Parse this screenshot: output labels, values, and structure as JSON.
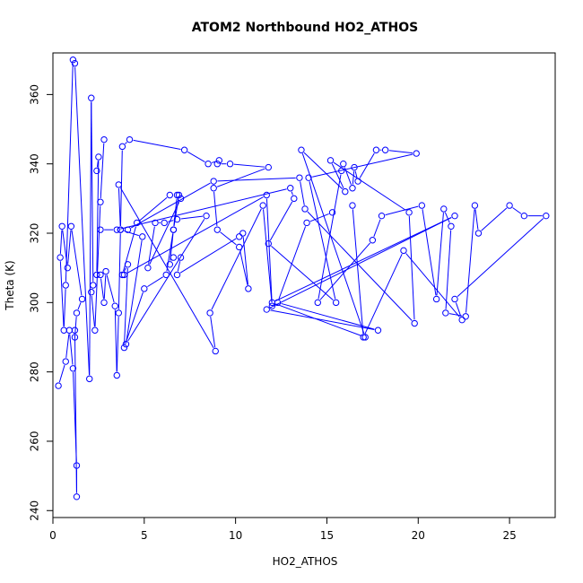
{
  "chart_data": {
    "type": "line",
    "title": "ATOM2 Northbound HO2_ATHOS",
    "xlabel": "HO2_ATHOS",
    "ylabel": "Theta (K)",
    "xlim": [
      0,
      27.5
    ],
    "ylim": [
      238,
      372
    ],
    "xticks": [
      0,
      5,
      10,
      15,
      20,
      25
    ],
    "yticks": [
      240,
      260,
      280,
      300,
      320,
      340,
      360
    ],
    "series_color": "#0000ff",
    "marker": "open-circle",
    "gap_after_indices": [
      24,
      63,
      79,
      113
    ],
    "points": [
      [
        0.3,
        276
      ],
      [
        0.7,
        283
      ],
      [
        0.9,
        292
      ],
      [
        1.1,
        281
      ],
      [
        1.3,
        253
      ],
      [
        1.3,
        244
      ],
      [
        1.2,
        292
      ],
      [
        1.2,
        290
      ],
      [
        1.3,
        297
      ],
      [
        1.6,
        301
      ],
      [
        1.0,
        322
      ],
      [
        0.8,
        310
      ],
      [
        0.5,
        322
      ],
      [
        0.4,
        313
      ],
      [
        0.6,
        292
      ],
      [
        0.7,
        305
      ],
      [
        1.1,
        370
      ],
      [
        1.2,
        369
      ],
      [
        2.0,
        278
      ],
      [
        2.1,
        359
      ],
      [
        2.2,
        305
      ],
      [
        2.1,
        303
      ],
      [
        2.3,
        292
      ],
      [
        2.6,
        329
      ],
      [
        2.8,
        347
      ],
      [
        2.4,
        338
      ],
      [
        2.5,
        342
      ],
      [
        2.4,
        308
      ],
      [
        2.6,
        308
      ],
      [
        2.8,
        300
      ],
      [
        2.9,
        309
      ],
      [
        3.4,
        299
      ],
      [
        3.5,
        279
      ],
      [
        3.6,
        297
      ],
      [
        3.7,
        321
      ],
      [
        3.8,
        345
      ],
      [
        4.2,
        347
      ],
      [
        7.2,
        344
      ],
      [
        8.5,
        340
      ],
      [
        9.1,
        341
      ],
      [
        9.0,
        340
      ],
      [
        9.7,
        340
      ],
      [
        11.8,
        339
      ],
      [
        8.8,
        333
      ],
      [
        9.0,
        321
      ],
      [
        10.2,
        316
      ],
      [
        10.7,
        304
      ],
      [
        10.4,
        320
      ],
      [
        10.2,
        319
      ],
      [
        6.8,
        308
      ],
      [
        7.0,
        313
      ],
      [
        6.6,
        313
      ],
      [
        6.4,
        311
      ],
      [
        6.6,
        321
      ],
      [
        6.8,
        331
      ],
      [
        6.4,
        331
      ],
      [
        4.6,
        323
      ],
      [
        3.8,
        308
      ],
      [
        4.1,
        311
      ],
      [
        3.9,
        287
      ],
      [
        5.0,
        304
      ],
      [
        6.2,
        308
      ],
      [
        6.6,
        321
      ],
      [
        6.9,
        331
      ],
      [
        7.0,
        330
      ],
      [
        5.2,
        310
      ],
      [
        5.6,
        323
      ],
      [
        6.1,
        323
      ],
      [
        6.8,
        324
      ],
      [
        8.4,
        325
      ],
      [
        4.0,
        288
      ],
      [
        4.9,
        319
      ],
      [
        3.7,
        321
      ],
      [
        3.6,
        334
      ],
      [
        8.9,
        286
      ],
      [
        8.6,
        297
      ],
      [
        11.5,
        328
      ],
      [
        12.0,
        299
      ],
      [
        11.7,
        331
      ],
      [
        3.9,
        308
      ],
      [
        2.6,
        321
      ],
      [
        3.5,
        321
      ],
      [
        13.0,
        333
      ],
      [
        13.2,
        330
      ],
      [
        11.8,
        317
      ],
      [
        15.5,
        300
      ],
      [
        14.0,
        336
      ],
      [
        19.9,
        343
      ],
      [
        18.2,
        344
      ],
      [
        17.7,
        344
      ],
      [
        16.7,
        335
      ],
      [
        16.5,
        339
      ],
      [
        16.4,
        333
      ],
      [
        15.9,
        340
      ],
      [
        15.8,
        338
      ],
      [
        14.5,
        300
      ],
      [
        17.5,
        318
      ],
      [
        18.0,
        325
      ],
      [
        20.2,
        328
      ],
      [
        21.0,
        301
      ],
      [
        21.4,
        327
      ],
      [
        21.8,
        322
      ],
      [
        21.5,
        297
      ],
      [
        22.6,
        296
      ],
      [
        23.1,
        328
      ],
      [
        23.3,
        320
      ],
      [
        25.0,
        328
      ],
      [
        25.8,
        325
      ],
      [
        27.0,
        325
      ],
      [
        22.0,
        301
      ],
      [
        22.4,
        295
      ],
      [
        19.2,
        315
      ],
      [
        17.0,
        290
      ],
      [
        16.4,
        328
      ],
      [
        15.3,
        326
      ],
      [
        13.9,
        323
      ],
      [
        12.3,
        300
      ],
      [
        17.8,
        292
      ],
      [
        11.7,
        298
      ],
      [
        22.0,
        325
      ],
      [
        12.0,
        300
      ],
      [
        17.1,
        290
      ],
      [
        13.6,
        344
      ],
      [
        16.0,
        332
      ],
      [
        15.2,
        341
      ],
      [
        19.5,
        326
      ],
      [
        19.8,
        294
      ],
      [
        13.8,
        327
      ],
      [
        13.5,
        336
      ],
      [
        8.8,
        335
      ],
      [
        4.1,
        321
      ]
    ]
  }
}
